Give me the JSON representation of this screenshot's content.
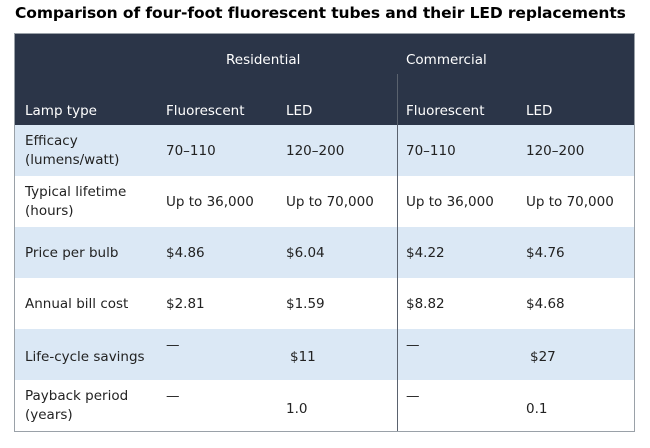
{
  "title": "Comparison of four-foot fluorescent tubes and their LED replacements",
  "groups": {
    "residential": "Residential",
    "commercial": "Commercial"
  },
  "columns": {
    "lamp_type": "Lamp type",
    "res_fluorescent": "Fluorescent",
    "res_led": "LED",
    "com_fluorescent": "Fluorescent",
    "com_led": "LED"
  },
  "rows": [
    {
      "label_line1": "Efficacy",
      "label_line2": "(lumens/watt)",
      "res_fluorescent": "70–110",
      "res_led": "120–200",
      "com_fluorescent": "70–110",
      "com_led": "120–200"
    },
    {
      "label_line1": "Typical lifetime",
      "label_line2": "(hours)",
      "res_fluorescent": "Up to 36,000",
      "res_led": "Up to 70,000",
      "com_fluorescent": "Up to 36,000",
      "com_led": "Up to 70,000"
    },
    {
      "label_line1": "Price per bulb",
      "res_fluorescent": "$4.86",
      "res_led": "$6.04",
      "com_fluorescent": "$4.22",
      "com_led": "$4.76"
    },
    {
      "label_line1": "Annual bill cost",
      "res_fluorescent": "$2.81",
      "res_led": "$1.59",
      "com_fluorescent": "$8.82",
      "com_led": "$4.68"
    },
    {
      "label_line1": "Life-cycle savings",
      "res_fluorescent": "—",
      "res_led": "$11",
      "com_fluorescent": "—",
      "com_led": "$27"
    },
    {
      "label_line1": "Payback period",
      "label_line2": "(years)",
      "res_fluorescent": "—",
      "res_led": "1.0",
      "com_fluorescent": "—",
      "com_led": "0.1"
    }
  ],
  "colors": {
    "header_bg": "#2b3548",
    "shaded_row": "#dbe8f5",
    "divider": "#5a626e"
  }
}
